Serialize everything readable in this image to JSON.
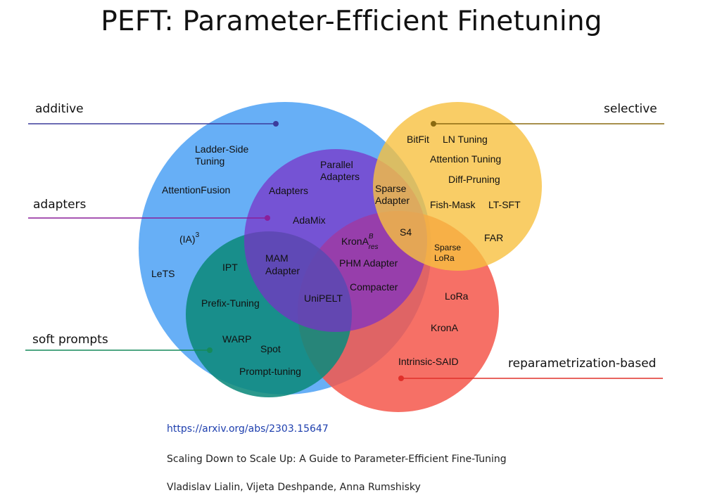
{
  "title": "PEFT: Parameter-Efficient Finetuning",
  "categories": {
    "additive": "additive",
    "adapters": "adapters",
    "selective": "selective",
    "soft_prompts": "soft prompts",
    "reparametrization": "reparametrization-based"
  },
  "colors": {
    "additive": "#5aa8f5",
    "adapters": "#7b2fc6",
    "selective": "#f8c040",
    "soft_prompts": "#0e8a7c",
    "reparametrization": "#f4574b",
    "additive_label": "#3c3c9c",
    "adapters_label": "#8a1f9a",
    "selective_label": "#8a6a10",
    "soft_prompts_label": "#158a5a",
    "reparametrization_label": "#e0302a",
    "link": "#1e3fae"
  },
  "methods": {
    "ladder_side_1": "Ladder-Side",
    "ladder_side_2": "Tuning",
    "attention_fusion": "AttentionFusion",
    "ia3_base": "(IA)",
    "ia3_sup": "3",
    "lets": "LeTS",
    "ipt": "IPT",
    "prefix_tuning": "Prefix-Tuning",
    "warp": "WARP",
    "spot": "Spot",
    "prompt_tuning": "Prompt-tuning",
    "adapters": "Adapters",
    "parallel_adapters_1": "Parallel",
    "parallel_adapters_2": "Adapters",
    "adamix": "AdaMix",
    "mam_adapter_1": "MAM",
    "mam_adapter_2": "Adapter",
    "krona_res_base": "KronA",
    "krona_res_sup": "B",
    "krona_res_sub": "res",
    "phm_adapter": "PHM Adapter",
    "compacter": "Compacter",
    "unipelt": "UniPELT",
    "sparse_adapter_1": "Sparse",
    "sparse_adapter_2": "Adapter",
    "s4": "S4",
    "bitfit": "BitFit",
    "ln_tuning": "LN Tuning",
    "attention_tuning": "Attention Tuning",
    "diff_pruning": "Diff-Pruning",
    "fish_mask": "Fish-Mask",
    "lt_sft": "LT-SFT",
    "far": "FAR",
    "sparse_lora_1": "Sparse",
    "sparse_lora_2": "LoRa",
    "lora": "LoRa",
    "krona": "KronA",
    "intrinsic_said": "Intrinsic-SAID"
  },
  "reference": {
    "url": "https://arxiv.org/abs/2303.15647",
    "paper_title": "Scaling Down to Scale Up: A Guide to Parameter-Efficient Fine-Tuning",
    "authors": "Vladislav Lialin, Vijeta Deshpande, Anna Rumshisky"
  }
}
